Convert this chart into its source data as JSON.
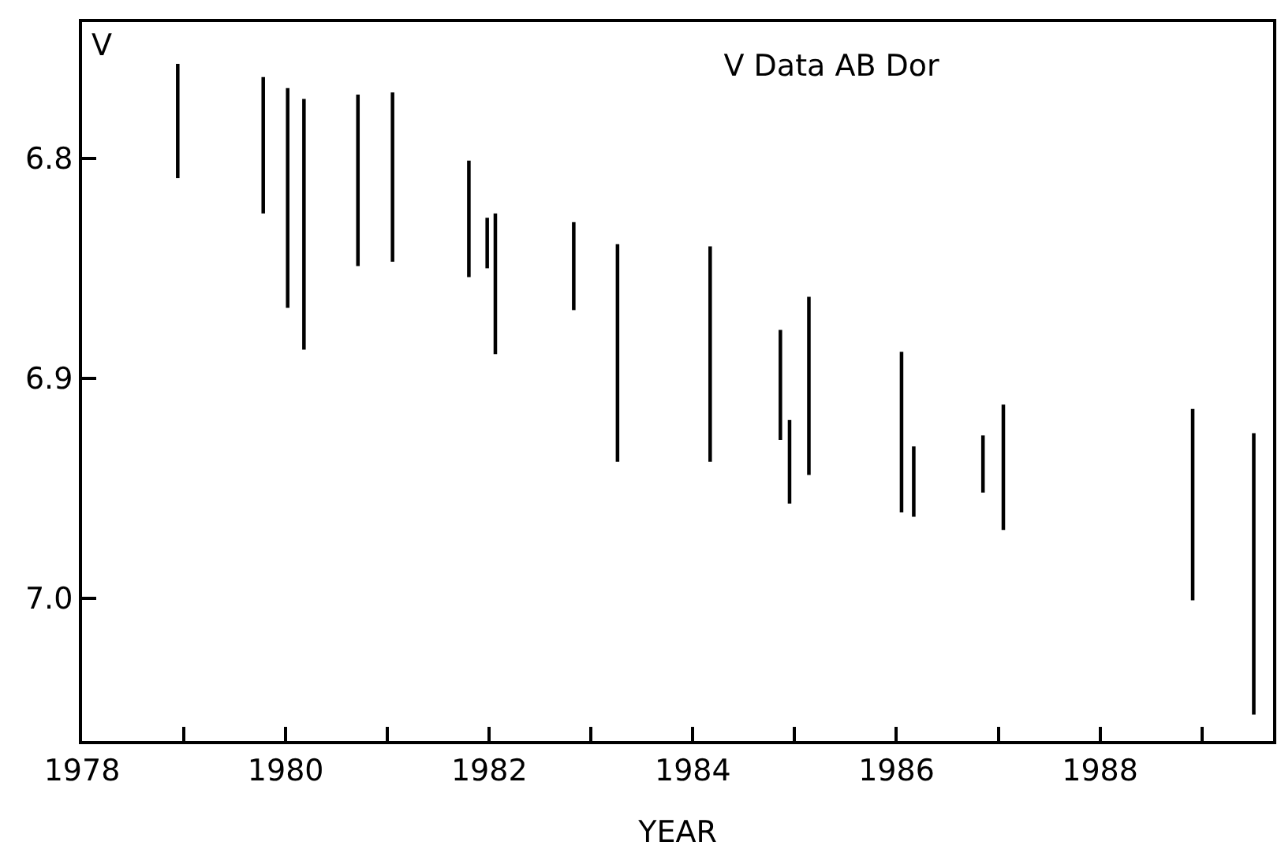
{
  "chart_data": {
    "type": "bar",
    "title": "V Data AB Dor",
    "xlabel": "YEAR",
    "ylabel": "V",
    "x": [
      1978.94,
      1979.78,
      1980.02,
      1980.18,
      1980.71,
      1981.05,
      1981.8,
      1981.98,
      1982.06,
      1982.83,
      1983.26,
      1984.17,
      1984.86,
      1984.95,
      1985.14,
      1986.05,
      1986.17,
      1986.85,
      1987.05,
      1988.91,
      1989.51
    ],
    "base": [
      6.757,
      6.763,
      6.768,
      6.773,
      6.771,
      6.77,
      6.801,
      6.827,
      6.825,
      6.829,
      6.839,
      6.84,
      6.878,
      6.919,
      6.863,
      6.888,
      6.931,
      6.926,
      6.912,
      6.914,
      6.925
    ],
    "values": [
      0.052,
      0.062,
      0.1,
      0.114,
      0.078,
      0.077,
      0.053,
      0.023,
      0.064,
      0.04,
      0.099,
      0.098,
      0.05,
      0.038,
      0.081,
      0.073,
      0.032,
      0.026,
      0.057,
      0.087,
      0.128
    ],
    "color": "#000000",
    "xlim": [
      1978,
      1989.7
    ],
    "xticks": [
      1978,
      {
        "value": 1979,
        "label": null
      },
      1980,
      {
        "value": 1981,
        "label": null
      },
      1982,
      {
        "value": 1983,
        "label": null
      },
      1984,
      {
        "value": 1985,
        "label": null
      },
      1986,
      {
        "value": 1987,
        "label": null
      },
      1988,
      {
        "value": 1989,
        "label": null
      }
    ],
    "ylim": [
      7.065,
      6.738
    ],
    "yticks": [
      6.8,
      6.9,
      {
        "value": 7.0,
        "label": "7.0"
      }
    ]
  }
}
